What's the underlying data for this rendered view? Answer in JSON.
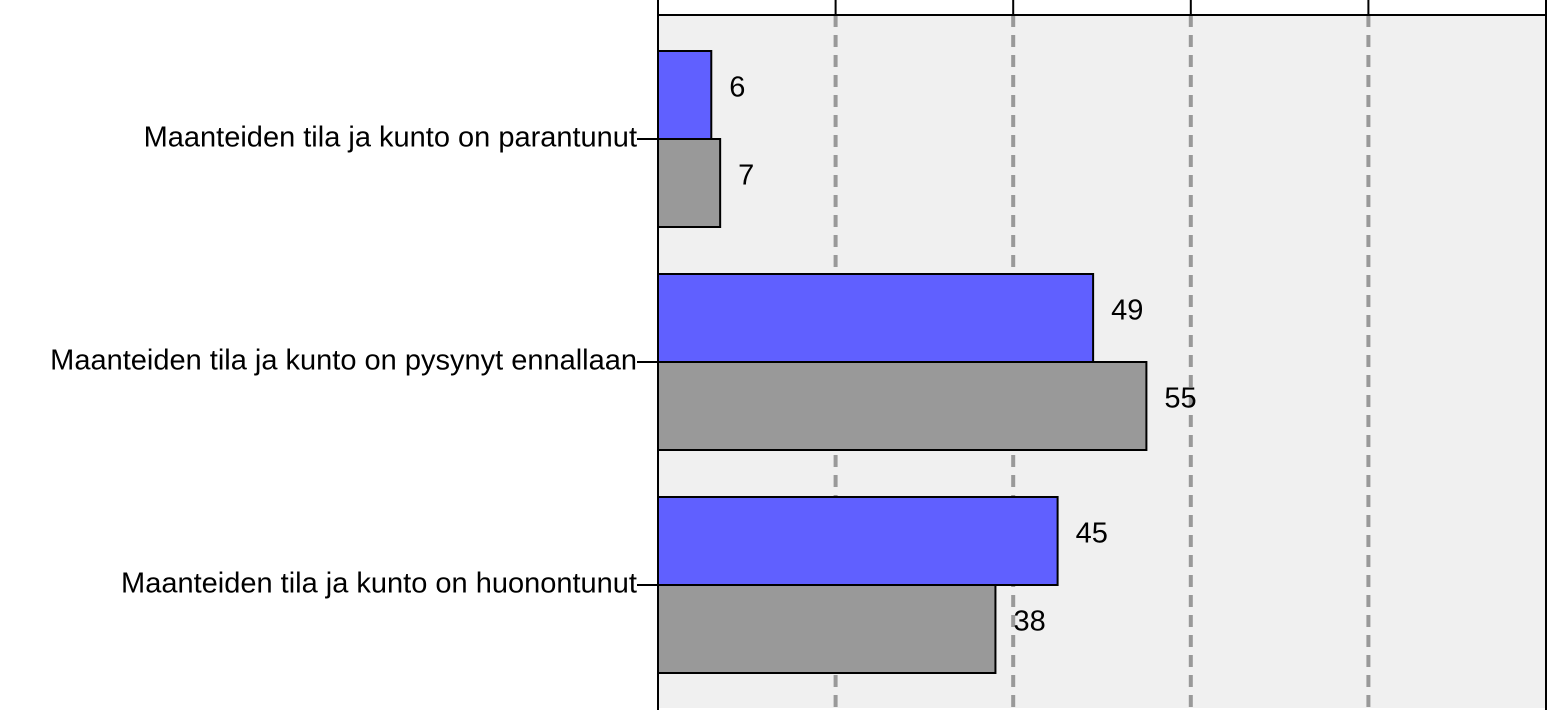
{
  "chart_data": {
    "type": "hbar",
    "categories": [
      "Maanteiden tila ja kunto on parantunut",
      "Maanteiden tila ja kunto on pysynyt ennallaan",
      "Maanteiden tila ja kunto on huonontunut"
    ],
    "series": [
      {
        "color": "#6060ff",
        "values": [
          6,
          49,
          45
        ]
      },
      {
        "color": "#999999",
        "values": [
          7,
          55,
          38
        ]
      }
    ],
    "xlim": [
      0,
      100
    ],
    "xticks": [
      0,
      20,
      40,
      60,
      80,
      100
    ],
    "grid": true
  }
}
